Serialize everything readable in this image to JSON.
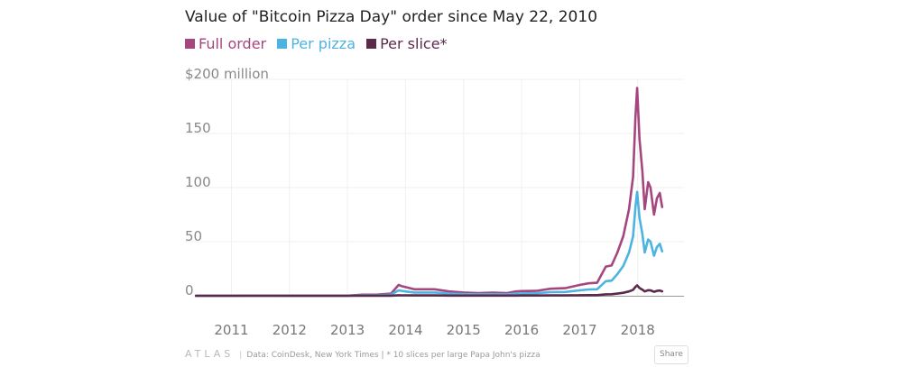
{
  "chart_data": {
    "type": "line",
    "title": "Value of \"Bitcoin Pizza Day\" order since May 22, 2010",
    "xlabel": "",
    "ylabel": "",
    "xlim": [
      2010.2,
      2018.75
    ],
    "ylim": [
      0,
      200
    ],
    "y_ticks": [
      0,
      50,
      100,
      150,
      200
    ],
    "y_tick_labels": [
      "0",
      "50",
      "100",
      "150",
      "$200 million"
    ],
    "x_ticks": [
      2011,
      2012,
      2013,
      2014,
      2015,
      2016,
      2017,
      2018
    ],
    "x_tick_labels": [
      "2011",
      "2012",
      "2013",
      "2014",
      "2015",
      "2016",
      "2017",
      "2018"
    ],
    "grid": true,
    "legend_position": "top-left",
    "x": [
      2010.39,
      2011.0,
      2011.45,
      2012.0,
      2012.5,
      2013.0,
      2013.25,
      2013.5,
      2013.75,
      2013.88,
      2013.93,
      2014.0,
      2014.15,
      2014.3,
      2014.5,
      2014.75,
      2015.0,
      2015.25,
      2015.5,
      2015.75,
      2015.9,
      2016.0,
      2016.25,
      2016.5,
      2016.75,
      2017.0,
      2017.15,
      2017.3,
      2017.45,
      2017.55,
      2017.65,
      2017.75,
      2017.85,
      2017.92,
      2017.96,
      2017.99,
      2018.03,
      2018.08,
      2018.12,
      2018.18,
      2018.22,
      2018.28,
      2018.33,
      2018.38,
      2018.42
    ],
    "series": [
      {
        "name": "Full order",
        "color": "#a5467e",
        "values": [
          0.0,
          0.0,
          0.2,
          0.1,
          0.1,
          0.1,
          1.0,
          1.0,
          2.0,
          10.0,
          9.0,
          8.0,
          6.0,
          6.0,
          6.0,
          4.0,
          3.0,
          2.5,
          2.8,
          2.5,
          4.0,
          4.3,
          4.5,
          6.5,
          7.0,
          10.0,
          11.5,
          12.0,
          27.0,
          28.0,
          40.0,
          55.0,
          80.0,
          110.0,
          165.0,
          192.0,
          145.0,
          115.0,
          80.0,
          105.0,
          100.0,
          75.0,
          90.0,
          95.0,
          82.0
        ]
      },
      {
        "name": "Per pizza",
        "color": "#4db3e0",
        "values": [
          0.0,
          0.0,
          0.1,
          0.05,
          0.05,
          0.05,
          0.5,
          0.5,
          1.0,
          5.0,
          4.5,
          4.0,
          3.0,
          3.0,
          3.0,
          2.0,
          1.5,
          1.3,
          1.4,
          1.3,
          2.0,
          2.2,
          2.3,
          3.3,
          3.5,
          5.0,
          5.8,
          6.0,
          13.5,
          14.0,
          20.0,
          27.5,
          40.0,
          55.0,
          82.0,
          96.0,
          72.0,
          57.0,
          40.0,
          52.0,
          50.0,
          37.0,
          45.0,
          48.0,
          41.0
        ]
      },
      {
        "name": "Per slice*",
        "color": "#5b2a4a",
        "values": [
          0.0,
          0.0,
          0.01,
          0.005,
          0.005,
          0.005,
          0.05,
          0.05,
          0.1,
          0.5,
          0.45,
          0.4,
          0.3,
          0.3,
          0.3,
          0.2,
          0.15,
          0.13,
          0.14,
          0.13,
          0.2,
          0.22,
          0.23,
          0.33,
          0.35,
          0.5,
          0.58,
          0.6,
          1.35,
          1.4,
          2.0,
          2.75,
          4.0,
          5.5,
          8.2,
          9.6,
          7.2,
          5.7,
          4.0,
          5.2,
          5.0,
          3.7,
          4.5,
          4.8,
          4.1
        ]
      }
    ]
  },
  "footer": {
    "brand": "ATLAS",
    "separator": "|",
    "source": "Data: CoinDesk, New York Times | * 10 slices per large Papa John's pizza",
    "share_label": "Share"
  }
}
